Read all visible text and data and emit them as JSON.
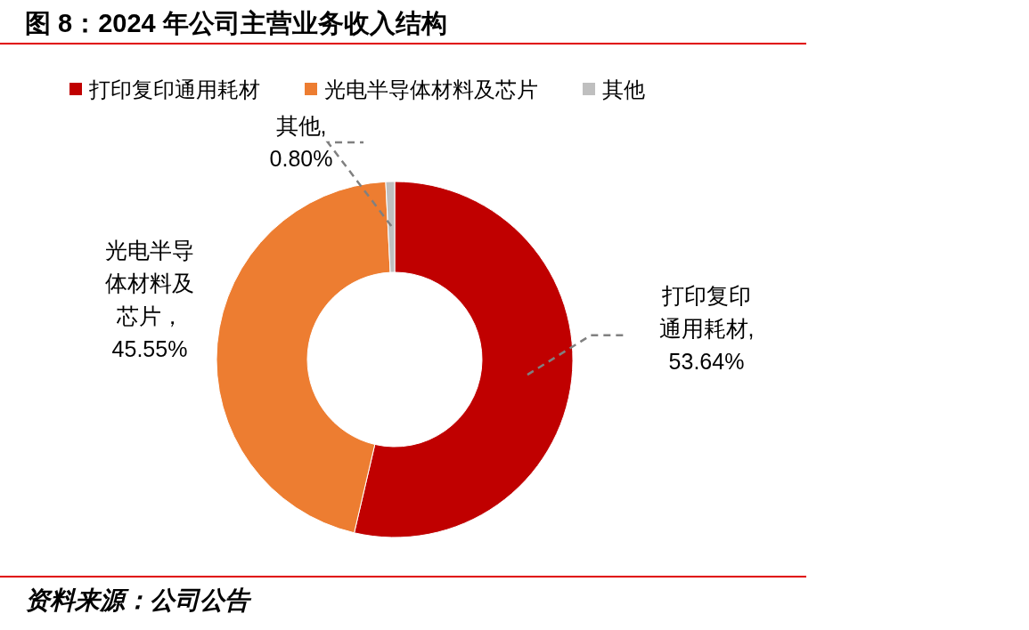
{
  "chart_data": {
    "type": "donut",
    "title": "图 8：2024 年公司主营业务收入结构",
    "categories": [
      "打印复印通用耗材",
      "光电半导体材料及芯片",
      "其他"
    ],
    "values": [
      53.64,
      45.55,
      0.8
    ],
    "colors": [
      "#c00000",
      "#ed7d31",
      "#bfbfbf"
    ],
    "value_labels": [
      "打印复印通用耗材, 53.64%",
      "光电半导体材料及芯片，45.55%",
      "其他, 0.80%"
    ],
    "legend": "top",
    "annotations": [
      "资料来源：公司公告"
    ]
  }
}
